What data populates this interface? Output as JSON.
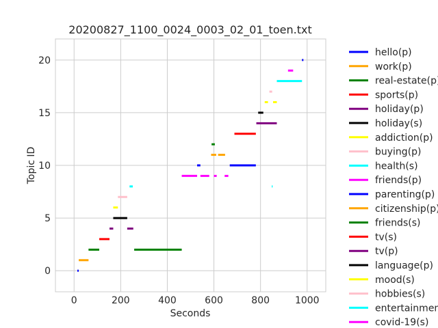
{
  "chart_data": {
    "type": "timeline",
    "title": "20200827_1100_0024_0003_02_01_toen.txt",
    "xlabel": "Seconds",
    "ylabel": "Topic ID",
    "xlim": [
      -80,
      1080
    ],
    "ylim": [
      -2,
      22
    ],
    "xticks": [
      0,
      200,
      400,
      600,
      800,
      1000
    ],
    "yticks": [
      0,
      5,
      10,
      15,
      20
    ],
    "grid": true,
    "legend_position": "outside-right",
    "legend": [
      {
        "label": "hello(p)",
        "color": "#0000ff"
      },
      {
        "label": "work(p)",
        "color": "#ffa500"
      },
      {
        "label": "real-estate(p)",
        "color": "#008000"
      },
      {
        "label": "sports(p)",
        "color": "#ff0000"
      },
      {
        "label": "holiday(p)",
        "color": "#800080"
      },
      {
        "label": "holiday(s)",
        "color": "#000000"
      },
      {
        "label": "addiction(p)",
        "color": "#ffff00"
      },
      {
        "label": "buying(p)",
        "color": "#ffc0cb"
      },
      {
        "label": "health(s)",
        "color": "#00ffff"
      },
      {
        "label": "friends(p)",
        "color": "#ff00ff"
      },
      {
        "label": "parenting(p)",
        "color": "#0000ff"
      },
      {
        "label": "citizenship(p)",
        "color": "#ffa500"
      },
      {
        "label": "friends(s)",
        "color": "#008000"
      },
      {
        "label": "tv(s)",
        "color": "#ff0000"
      },
      {
        "label": "tv(p)",
        "color": "#800080"
      },
      {
        "label": "language(p)",
        "color": "#000000"
      },
      {
        "label": "mood(s)",
        "color": "#ffff00"
      },
      {
        "label": "hobbies(s)",
        "color": "#ffc0cb"
      },
      {
        "label": "entertainment(p",
        "color": "#00ffff"
      },
      {
        "label": "covid-19(s)",
        "color": "#ff00ff"
      }
    ],
    "segments": [
      {
        "topic": 0,
        "start": 14,
        "end": 20,
        "color": "#0000ff"
      },
      {
        "topic": 1,
        "start": 20,
        "end": 62,
        "color": "#ffa500"
      },
      {
        "topic": 2,
        "start": 62,
        "end": 108,
        "color": "#008000"
      },
      {
        "topic": 2,
        "start": 258,
        "end": 462,
        "color": "#008000"
      },
      {
        "topic": 3,
        "start": 108,
        "end": 152,
        "color": "#ff0000"
      },
      {
        "topic": 4,
        "start": 152,
        "end": 168,
        "color": "#800080"
      },
      {
        "topic": 4,
        "start": 228,
        "end": 254,
        "color": "#800080"
      },
      {
        "topic": 5,
        "start": 168,
        "end": 228,
        "color": "#000000"
      },
      {
        "topic": 6,
        "start": 168,
        "end": 188,
        "color": "#ffff00"
      },
      {
        "topic": 7,
        "start": 188,
        "end": 228,
        "color": "#ffc0cb"
      },
      {
        "topic": 8,
        "start": 238,
        "end": 252,
        "color": "#00ffff"
      },
      {
        "topic": 8,
        "start": 848,
        "end": 852,
        "color": "#00ffff"
      },
      {
        "topic": 9,
        "start": 462,
        "end": 528,
        "color": "#ff00ff"
      },
      {
        "topic": 9,
        "start": 542,
        "end": 580,
        "color": "#ff00ff"
      },
      {
        "topic": 9,
        "start": 600,
        "end": 612,
        "color": "#ff00ff"
      },
      {
        "topic": 9,
        "start": 646,
        "end": 662,
        "color": "#ff00ff"
      },
      {
        "topic": 10,
        "start": 528,
        "end": 542,
        "color": "#0000ff"
      },
      {
        "topic": 10,
        "start": 668,
        "end": 780,
        "color": "#0000ff"
      },
      {
        "topic": 11,
        "start": 588,
        "end": 610,
        "color": "#ffa500"
      },
      {
        "topic": 11,
        "start": 618,
        "end": 648,
        "color": "#ffa500"
      },
      {
        "topic": 12,
        "start": 590,
        "end": 604,
        "color": "#008000"
      },
      {
        "topic": 13,
        "start": 688,
        "end": 780,
        "color": "#ff0000"
      },
      {
        "topic": 14,
        "start": 782,
        "end": 870,
        "color": "#800080"
      },
      {
        "topic": 15,
        "start": 790,
        "end": 812,
        "color": "#000000"
      },
      {
        "topic": 16,
        "start": 818,
        "end": 832,
        "color": "#ffff00"
      },
      {
        "topic": 16,
        "start": 854,
        "end": 870,
        "color": "#ffff00"
      },
      {
        "topic": 17,
        "start": 838,
        "end": 850,
        "color": "#ffc0cb"
      },
      {
        "topic": 18,
        "start": 870,
        "end": 978,
        "color": "#00ffff"
      },
      {
        "topic": 19,
        "start": 918,
        "end": 940,
        "color": "#ff00ff"
      },
      {
        "topic": 20,
        "start": 978,
        "end": 984,
        "color": "#0000ff"
      }
    ]
  }
}
